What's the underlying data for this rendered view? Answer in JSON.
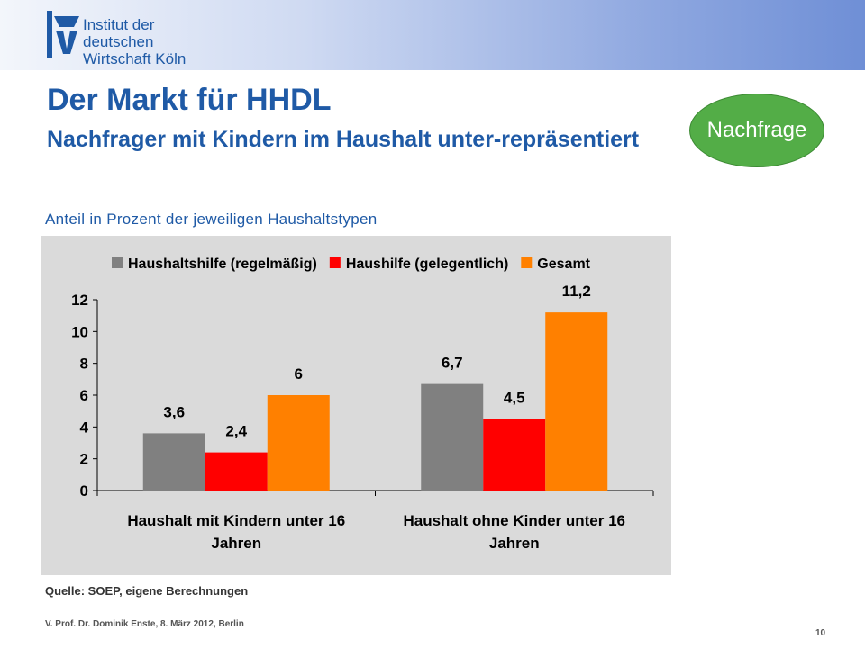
{
  "header": {
    "org_line1": "Institut der deutschen",
    "org_line2": "Wirtschaft Köln",
    "accent": "#1f5aa6"
  },
  "title": {
    "main": "Der Markt für HHDL",
    "sub": "Nachfrager mit Kindern im Haushalt unter-repräsentiert"
  },
  "badge": {
    "label": "Nachfrage",
    "color": "#53ad47"
  },
  "subtitle": "Anteil in Prozent der jeweiligen Haushaltstypen",
  "chart_data": {
    "type": "bar",
    "categories": [
      "Haushalt mit Kindern unter 16 Jahren",
      "Haushalt ohne Kinder unter 16 Jahren"
    ],
    "series": [
      {
        "name": "Haushaltshilfe (regelmäßig)",
        "values": [
          3.6,
          6.7
        ],
        "labels": [
          "3,6",
          "6,7"
        ],
        "color": "#808080"
      },
      {
        "name": "Haushilfe (gelegentlich)",
        "values": [
          2.4,
          4.5
        ],
        "labels": [
          "2,4",
          "4,5"
        ],
        "color": "#ff0000"
      },
      {
        "name": "Gesamt",
        "values": [
          6,
          11.2
        ],
        "labels": [
          "6",
          "11,2"
        ],
        "color": "#ff8000"
      }
    ],
    "ylim": [
      0,
      12
    ],
    "yticks": [
      0,
      2,
      4,
      6,
      8,
      10,
      12
    ],
    "legend": "top",
    "grid": false,
    "background": "#dadada"
  },
  "source": "Quelle: SOEP, eigene Berechnungen",
  "footer": "V. Prof. Dr. Dominik Enste, 8. März 2012, Berlin",
  "page_number": "10"
}
